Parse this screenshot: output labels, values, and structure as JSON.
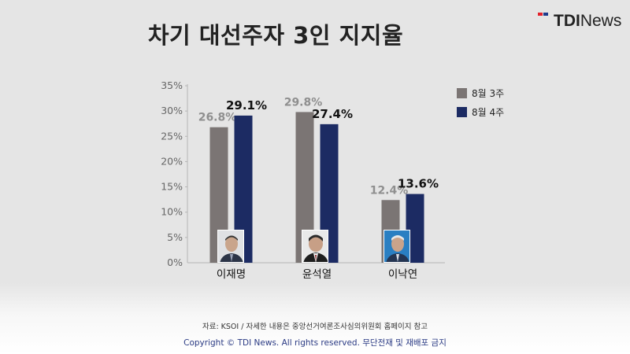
{
  "title": "차기 대선주자 3인 지지율",
  "brand": {
    "bold": "TDI",
    "light": "News"
  },
  "colors": {
    "previous": "#7b7574",
    "current": "#1c2b63",
    "label_previous": "#8f8f8f",
    "label_current": "#111111",
    "axis_text": "#666666",
    "grid": "#b5b5b5"
  },
  "chart_data": {
    "type": "bar",
    "title": "차기 대선주자 3인 지지율",
    "categories": [
      "이재명",
      "윤석열",
      "이낙연"
    ],
    "series": [
      {
        "name": "8월 3주",
        "values": [
          26.8,
          29.8,
          12.4
        ],
        "labels": [
          "26.8%",
          "29.8%",
          "12.4%"
        ]
      },
      {
        "name": "8월 4주",
        "values": [
          29.1,
          27.4,
          13.6
        ],
        "labels": [
          "29.1%",
          "27.4%",
          "13.6%"
        ]
      }
    ],
    "yticks": [
      0,
      5,
      10,
      15,
      20,
      25,
      30,
      35
    ],
    "ytick_labels": [
      "0%",
      "5%",
      "10%",
      "15%",
      "20%",
      "25%",
      "30%",
      "35%"
    ],
    "ylim": [
      0,
      35
    ],
    "grid": false,
    "legend": "right",
    "candidate_photos": [
      "photo-icon-lee-jaemyung",
      "photo-icon-yoon-seokyeol",
      "photo-icon-lee-nakyon"
    ]
  },
  "footer": {
    "source": "자료: KSOI / 자세한 내용은 중앙선거여론조사심의위원회 홈페이지 참고",
    "copyright": "Copyright © TDI News. All rights reserved. 무단전재 및 재배포 금지"
  }
}
